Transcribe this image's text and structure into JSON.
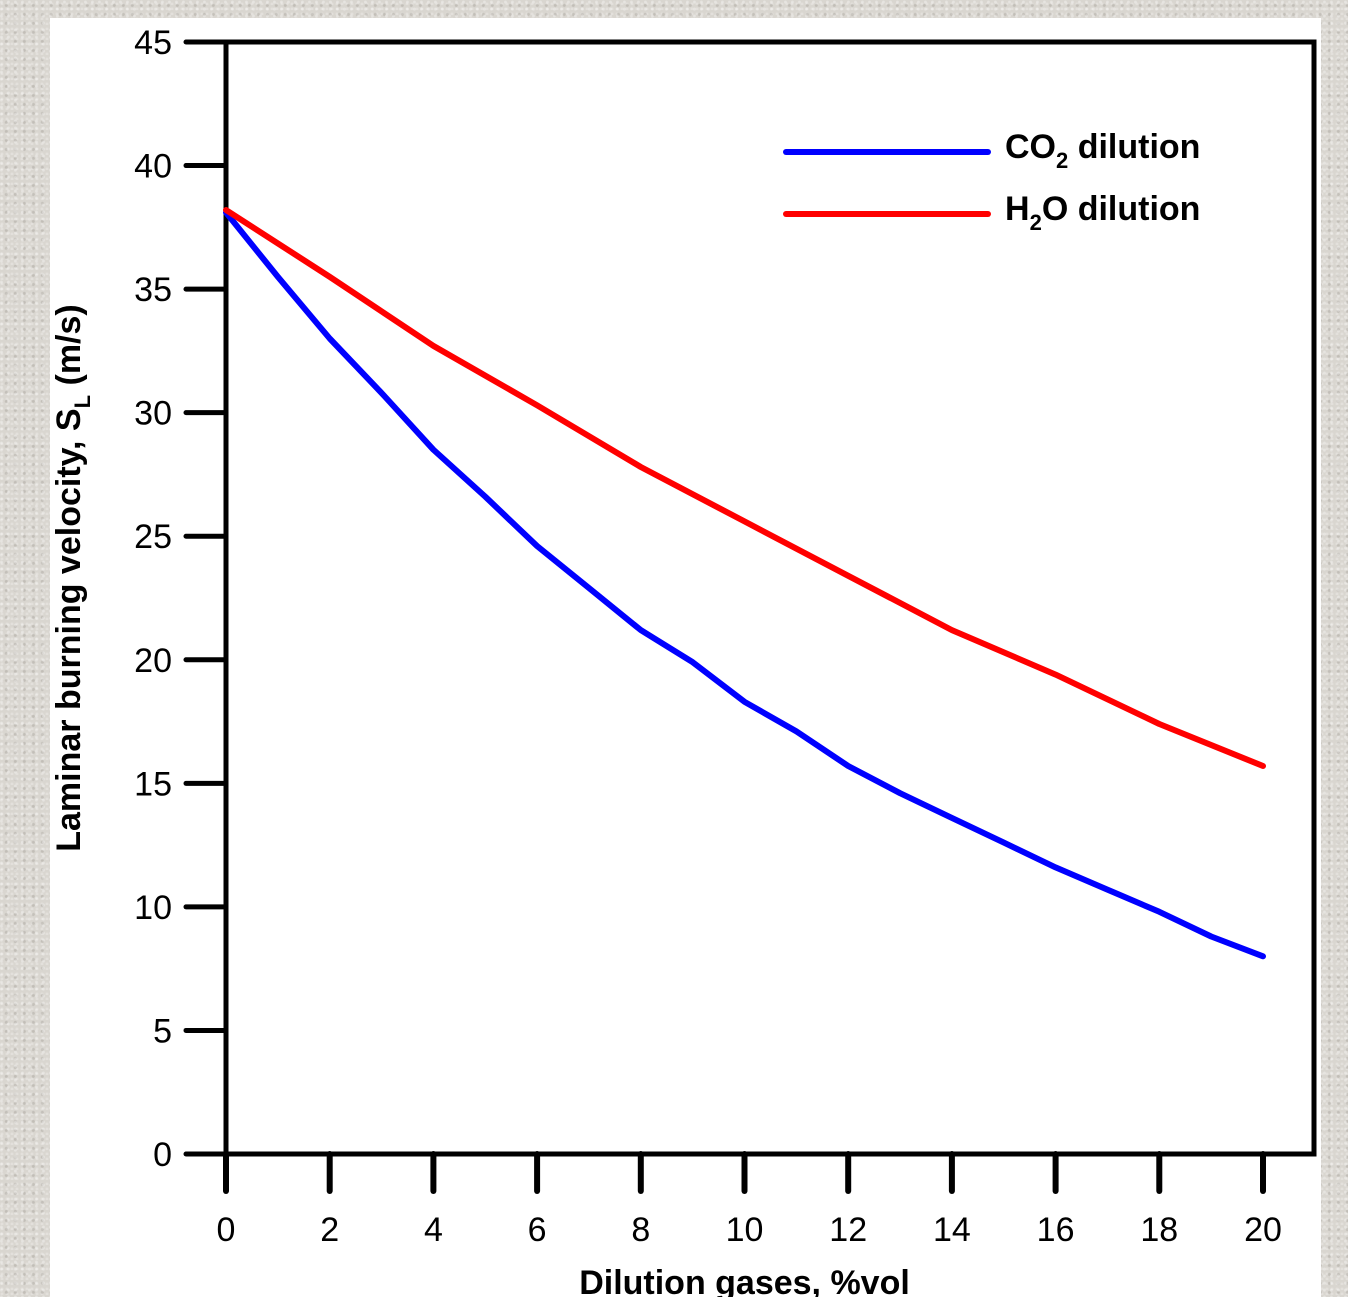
{
  "chart_data": {
    "type": "line",
    "xlabel": "Dilution gases, %vol",
    "ylabel": {
      "main": "Laminar burning velocity, S",
      "subscript": "L",
      "unit": " (m/s)"
    },
    "xlim": [
      0,
      20
    ],
    "ylim": [
      0,
      45
    ],
    "xticks": [
      "0",
      "2",
      "4",
      "6",
      "8",
      "10",
      "12",
      "14",
      "16",
      "18",
      "20"
    ],
    "yticks": [
      "0",
      "5",
      "10",
      "15",
      "20",
      "25",
      "30",
      "35",
      "40",
      "45"
    ],
    "grid": false,
    "legend_position": "top-right",
    "series": [
      {
        "name": "CO2 dilution",
        "legend": {
          "pre": "CO",
          "sub": "2",
          "post": " dilution"
        },
        "color": "#0000ff",
        "x": [
          0,
          1,
          2,
          3,
          4,
          5,
          6,
          7,
          8,
          9,
          10,
          11,
          12,
          13,
          14,
          15,
          16,
          17,
          18,
          19,
          20
        ],
        "values": [
          38.1,
          35.5,
          33.0,
          30.8,
          28.5,
          26.6,
          24.6,
          22.9,
          21.2,
          19.9,
          18.3,
          17.1,
          15.7,
          14.6,
          13.6,
          12.6,
          11.6,
          10.7,
          9.8,
          8.8,
          8.0
        ]
      },
      {
        "name": "H2O dilution",
        "legend": {
          "pre": "H",
          "sub": "2",
          "post": "O dilution"
        },
        "color": "#ff0000",
        "x": [
          0,
          2,
          4,
          6,
          8,
          10,
          12,
          14,
          16,
          18,
          20
        ],
        "values": [
          38.2,
          35.5,
          32.7,
          30.3,
          27.8,
          25.6,
          23.4,
          21.2,
          19.4,
          17.4,
          15.7
        ]
      }
    ]
  }
}
